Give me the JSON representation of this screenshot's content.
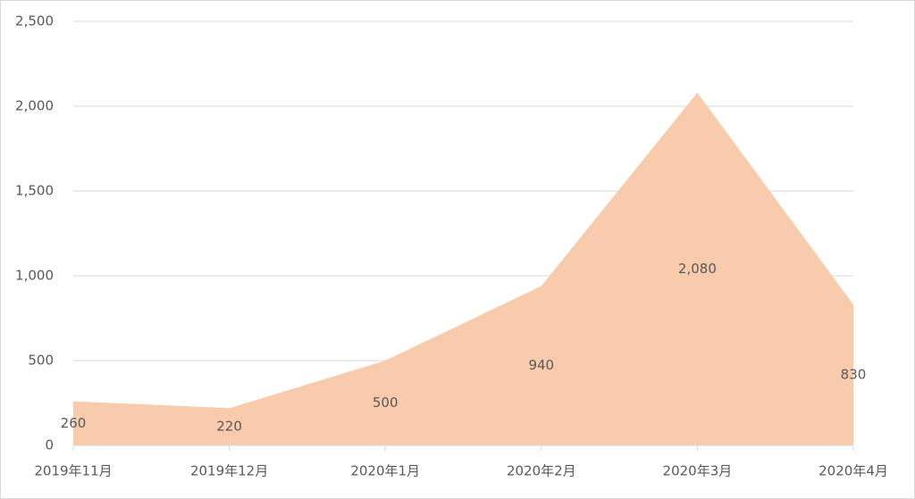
{
  "chart_data": {
    "type": "area",
    "categories": [
      "2019年11月",
      "2019年12月",
      "2020年1月",
      "2020年2月",
      "2020年3月",
      "2020年4月"
    ],
    "values": [
      260,
      220,
      500,
      940,
      2080,
      830
    ],
    "value_labels": [
      "260",
      "220",
      "500",
      "940",
      "2,080",
      "830"
    ],
    "color": "#f8cbad",
    "ylim": [
      0,
      2500
    ],
    "yticks": [
      0,
      500,
      {
        "value": 1000,
        "label": "1,000"
      },
      {
        "value": 1500,
        "label": "1,500"
      },
      {
        "value": 2000,
        "label": "2,000"
      },
      {
        "value": 2500,
        "label": "2,500"
      }
    ],
    "grid": true
  }
}
